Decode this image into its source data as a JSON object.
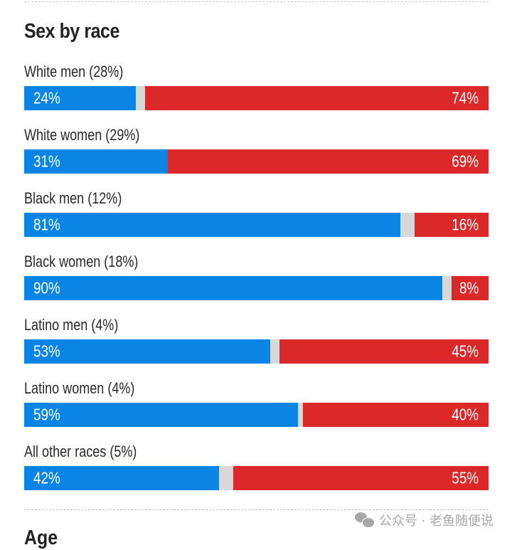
{
  "chart_data": {
    "type": "bar",
    "orientation": "horizontal-stacked-100",
    "title": "Sex by race",
    "categories": [
      "White men (28%)",
      "White women (29%)",
      "Black men (12%)",
      "Black women (18%)",
      "Latino men (4%)",
      "Latino women (4%)",
      "All other races (5%)"
    ],
    "series": [
      {
        "name": "blue",
        "color": "#0a85e6",
        "values": [
          24,
          31,
          81,
          90,
          53,
          59,
          42
        ]
      },
      {
        "name": "red",
        "color": "#dc2828",
        "values": [
          74,
          69,
          16,
          8,
          45,
          40,
          55
        ]
      }
    ],
    "other_color": "#d8d8d8",
    "xlim": [
      0,
      100
    ],
    "value_suffix": "%",
    "grid": false,
    "legend": "none"
  },
  "next_section_title": "Age",
  "watermark": {
    "icon": "wechat-icon",
    "text": "公众号 · 老鱼随便说"
  }
}
